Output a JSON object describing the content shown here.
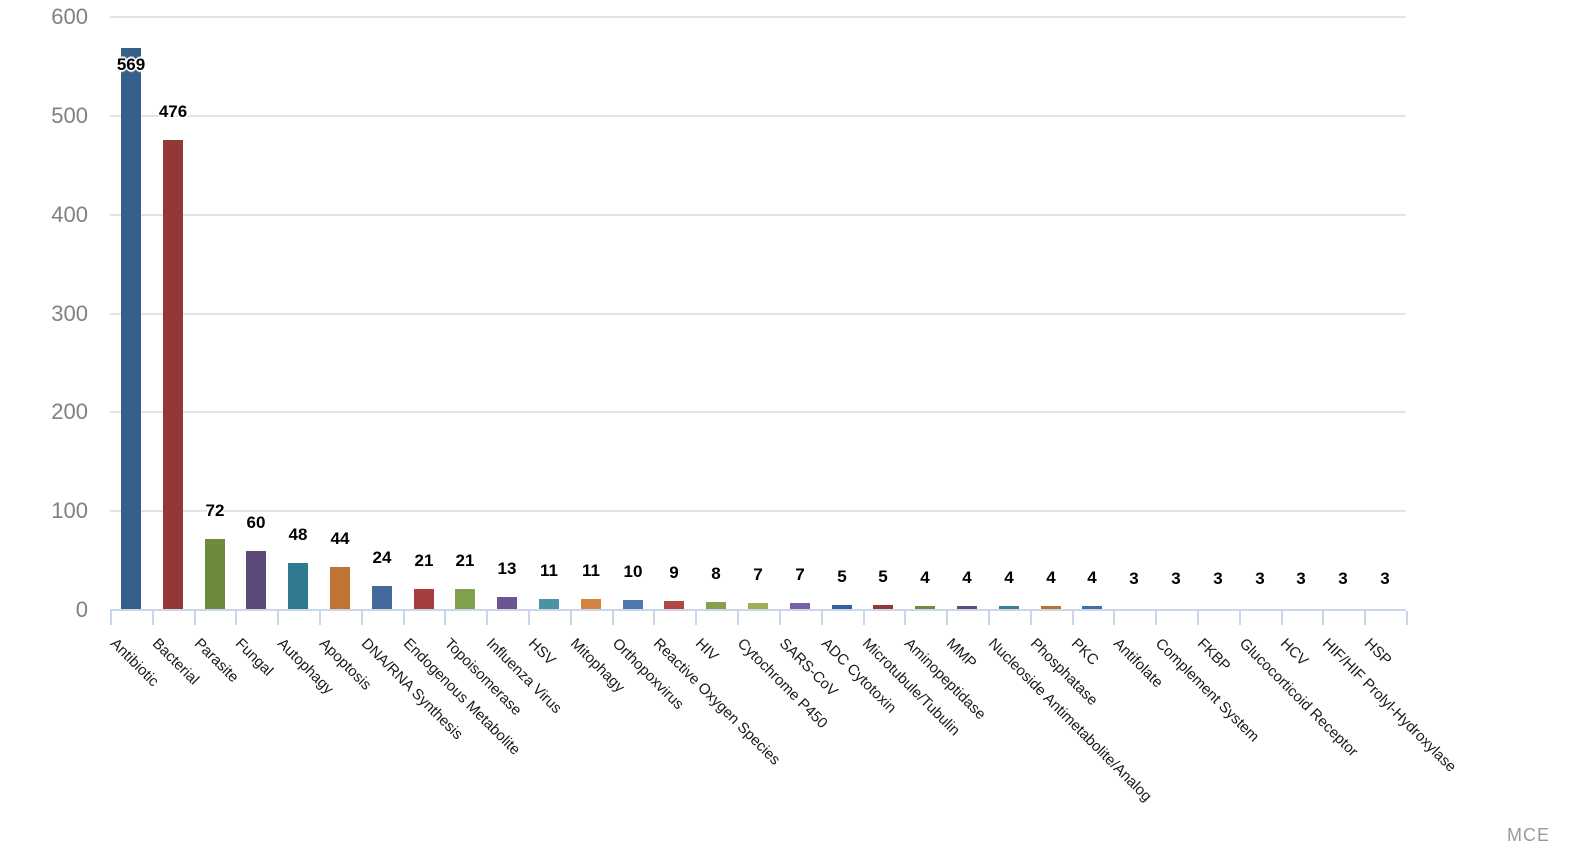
{
  "watermark": "MCE",
  "chart_data": {
    "type": "bar",
    "title": "",
    "xlabel": "",
    "ylabel": "",
    "ylim": [
      0,
      600
    ],
    "yticks": [
      0,
      100,
      200,
      300,
      400,
      500,
      600
    ],
    "grid": true,
    "legend": false,
    "value_labels_shown": true,
    "categories": [
      "Antibiotic",
      "Bacterial",
      "Parasite",
      "Fungal",
      "Autophagy",
      "Apoptosis",
      "DNA/RNA Synthesis",
      "Endogenous Metabolite",
      "Topoisomerase",
      "Influenza Virus",
      "HSV",
      "Mitophagy",
      "Orthopoxvirus",
      "Reactive Oxygen Species",
      "HIV",
      "Cytochrome P450",
      "SARS-CoV",
      "ADC Cytotoxin",
      "Microtubule/Tubulin",
      "Aminopeptidase",
      "MMP",
      "Nucleoside Antimetabolite/Analog",
      "Phosphatase",
      "PKC",
      "Antifolate",
      "Complement System",
      "FKBP",
      "Glucocorticoid Receptor",
      "HCV",
      "HIF/HIF Prolyl-Hydroxylase",
      "HSP"
    ],
    "values": [
      569,
      476,
      72,
      60,
      48,
      44,
      24,
      21,
      21,
      13,
      11,
      11,
      10,
      9,
      8,
      7,
      7,
      5,
      5,
      4,
      4,
      4,
      4,
      4,
      3,
      3,
      3,
      3,
      3,
      3,
      3
    ],
    "bar_colors": [
      "#375f8c",
      "#943836",
      "#6e8b3d",
      "#5c4a7b",
      "#2f7a8e",
      "#c07434",
      "#44699c",
      "#a43e3c",
      "#81a14e",
      "#6b5695",
      "#4a93a2",
      "#d18440",
      "#4c7ab0",
      "#ae4745",
      "#88a04e",
      "#9bae58",
      "#7661a1",
      "#33619e",
      "#8e3a38",
      "#6f8c3e",
      "#5f4b7e",
      "#3a7f96",
      "#b8742e",
      "#3e6fa5",
      "#9e3b39",
      "#6f8c3e",
      "#5d4a7c",
      "#31798e",
      "#c07434",
      "#44699c",
      "#a43e3c"
    ],
    "axis_color": "#ccd6ea",
    "gridline_color": "#e3e3e3",
    "y_tick_label_color": "#808080",
    "x_tick_label_color": "#1a1a1a",
    "value_label_color": "#000000"
  }
}
